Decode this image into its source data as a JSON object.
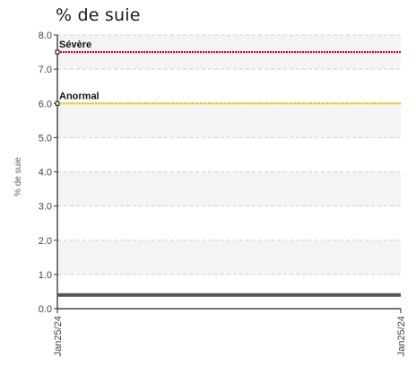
{
  "chart_data": {
    "type": "line",
    "title": "% de suie",
    "ylabel": "% de suie",
    "xlabel": "",
    "ylim": [
      0,
      8
    ],
    "yticks": [
      "0.0",
      "1.0",
      "2.0",
      "3.0",
      "4.0",
      "5.0",
      "6.0",
      "7.0",
      "8.0"
    ],
    "x": [
      "Jan25/24",
      "Jan25/24"
    ],
    "thresholds": [
      {
        "label": "Sévère",
        "value": 7.5,
        "color": "#e0001b"
      },
      {
        "label": "Anormal",
        "value": 6.0,
        "color": "#f2c200"
      }
    ],
    "series": [
      {
        "values": [
          0.4,
          0.4
        ],
        "color": "#555555"
      }
    ],
    "grid": true
  }
}
